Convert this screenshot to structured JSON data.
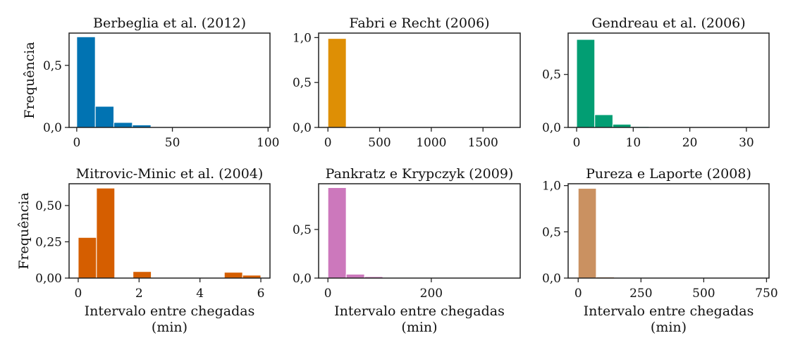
{
  "chart_data": [
    {
      "type": "bar",
      "title": "Berbeglia et al. (2012)",
      "color": "#0173b2",
      "ylabel": "Frequência",
      "xlabel": "",
      "xlim": [
        -4,
        101
      ],
      "ylim": [
        0,
        0.76
      ],
      "xticks": [
        0,
        50,
        100
      ],
      "xtick_labels": [
        "0",
        "50",
        "100"
      ],
      "yticks": [
        0,
        0.5
      ],
      "ytick_labels": [
        "0,0",
        "0,5"
      ],
      "bin_edges": [
        0,
        9.7,
        19.4,
        29.1,
        38.8,
        48.5,
        58.2,
        67.9,
        77.6,
        87.3,
        97
      ],
      "values": [
        0.73,
        0.17,
        0.04,
        0.02,
        0.005,
        0.002,
        0.001,
        0.001,
        0.001,
        0.001
      ]
    },
    {
      "type": "bar",
      "title": "Fabri e Recht (2006)",
      "color": "#de8f05",
      "ylabel": "",
      "xlabel": "",
      "xlim": [
        -90,
        1860
      ],
      "ylim": [
        0,
        1.05
      ],
      "xticks": [
        0,
        500,
        1000,
        1500
      ],
      "xtick_labels": [
        "0",
        "500",
        "1000",
        "1500"
      ],
      "yticks": [
        0,
        0.5,
        1.0
      ],
      "ytick_labels": [
        "0,0",
        "0,5",
        "1,0"
      ],
      "bin_edges": [
        0,
        177,
        354,
        531,
        708,
        885,
        1062,
        1239,
        1416,
        1593,
        1770
      ],
      "values": [
        0.99,
        0.004,
        0.002,
        0.001,
        0.001,
        0.001,
        0.001,
        0.001,
        0.001,
        0.001
      ]
    },
    {
      "type": "bar",
      "title": "Gendreau et al. (2006)",
      "color": "#029e73",
      "ylabel": "",
      "xlabel": "",
      "xlim": [
        -1.5,
        34
      ],
      "ylim": [
        0,
        0.89
      ],
      "xticks": [
        0,
        10,
        20,
        30
      ],
      "xtick_labels": [
        "0",
        "10",
        "20",
        "30"
      ],
      "yticks": [
        0,
        0.5
      ],
      "ytick_labels": [
        "0,0",
        "0,5"
      ],
      "bin_edges": [
        0,
        3.2,
        6.4,
        9.6,
        12.8,
        16,
        19.2,
        22.4,
        25.6,
        28.8,
        32
      ],
      "values": [
        0.83,
        0.12,
        0.03,
        0.008,
        0.003,
        0.002,
        0.001,
        0.001,
        0.001,
        0.001
      ]
    },
    {
      "type": "bar",
      "title": "Mitrovic-Minic et al. (2004)",
      "color": "#d55e00",
      "ylabel": "Frequência",
      "xlabel": "Intervalo entre chegadas (min)",
      "xlim": [
        -0.3,
        6.3
      ],
      "ylim": [
        0,
        0.65
      ],
      "xticks": [
        0,
        2,
        4,
        6
      ],
      "xtick_labels": [
        "0",
        "2",
        "4",
        "6"
      ],
      "yticks": [
        0,
        0.25,
        0.5
      ],
      "ytick_labels": [
        "0,00",
        "0,25",
        "0,50"
      ],
      "bin_edges": [
        0,
        0.6,
        1.2,
        1.8,
        2.4,
        3.0,
        3.6,
        4.2,
        4.8,
        5.4,
        6.0
      ],
      "values": [
        0.28,
        0.62,
        0.0,
        0.045,
        0.0,
        0.0,
        0.0,
        0.0,
        0.04,
        0.02
      ]
    },
    {
      "type": "bar",
      "title": "Pankratz e Krypczyk (2009)",
      "color": "#cc78bc",
      "ylabel": "",
      "xlabel": "Intervalo entre chegadas (min)",
      "xlim": [
        -18,
        372
      ],
      "ylim": [
        0,
        0.97
      ],
      "xticks": [
        0,
        200
      ],
      "xtick_labels": [
        "0",
        "200"
      ],
      "yticks": [
        0,
        0.5
      ],
      "ytick_labels": [
        "0,0",
        "0,5"
      ],
      "bin_edges": [
        0,
        35.4,
        70.8,
        106.2,
        141.6,
        177,
        212.4,
        247.8,
        283.2,
        318.6,
        354
      ],
      "values": [
        0.93,
        0.04,
        0.015,
        0.005,
        0.003,
        0.002,
        0.001,
        0.001,
        0.001,
        0.001
      ]
    },
    {
      "type": "bar",
      "title": "Pureza e Laporte (2008)",
      "color": "#ca9161",
      "ylabel": "",
      "xlabel": "Intervalo entre chegadas (min)",
      "xlim": [
        -40,
        760
      ],
      "ylim": [
        0,
        1.02
      ],
      "xticks": [
        0,
        250,
        500,
        750
      ],
      "xtick_labels": [
        "0",
        "250",
        "500",
        "750"
      ],
      "yticks": [
        0,
        0.5,
        1.0
      ],
      "ytick_labels": [
        "0,0",
        "0,5",
        "1,0"
      ],
      "bin_edges": [
        0,
        72,
        144,
        216,
        288,
        360,
        432,
        504,
        576,
        648,
        720
      ],
      "values": [
        0.97,
        0.012,
        0.004,
        0.002,
        0.001,
        0.001,
        0.001,
        0.001,
        0.001,
        0.001
      ]
    }
  ]
}
